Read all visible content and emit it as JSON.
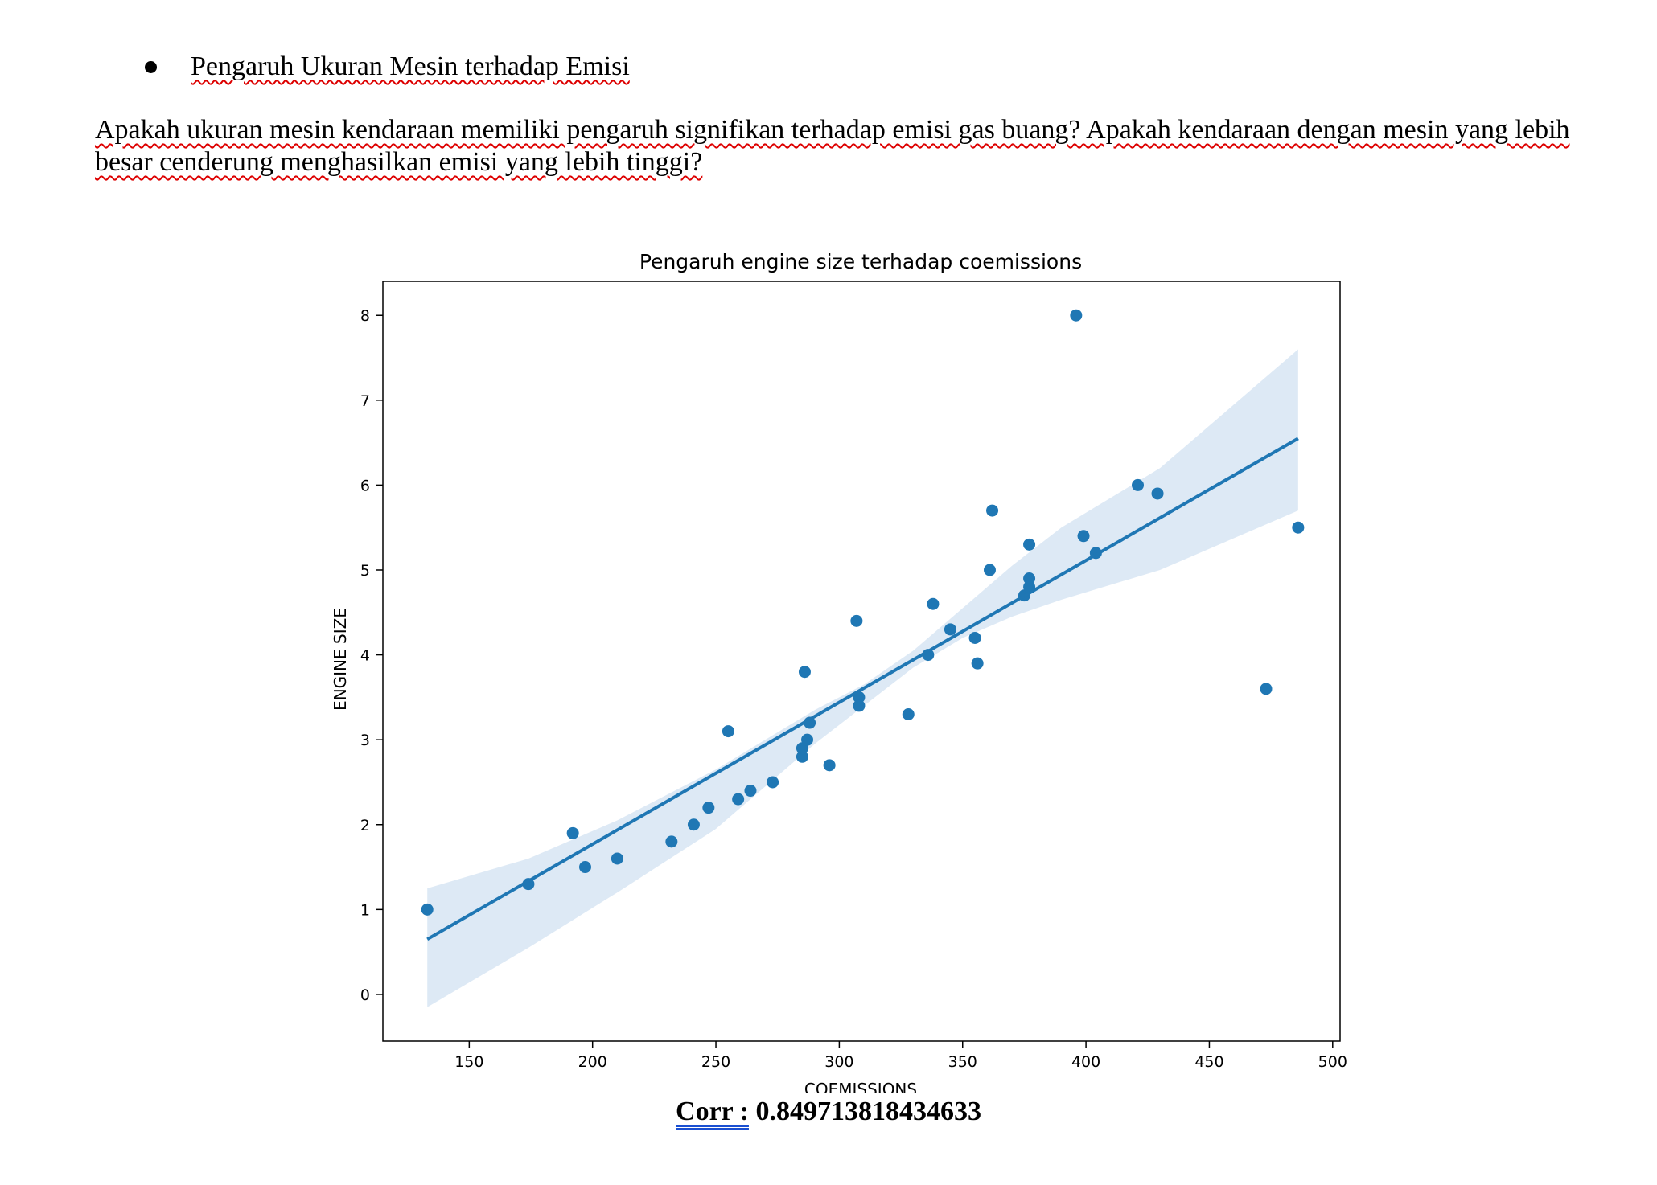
{
  "document": {
    "bullet_heading": "Pengaruh Ukuran Mesin terhadap Emisi",
    "question": "Apakah ukuran mesin kendaraan memiliki pengaruh signifikan terhadap emisi gas buang? Apakah kendaraan dengan mesin yang lebih besar cenderung menghasilkan emisi yang lebih tinggi?",
    "corr_label": "Corr :",
    "corr_value": " 0.849713818434633"
  },
  "chart_data": {
    "type": "scatter",
    "title": "Pengaruh engine size terhadap coemissions",
    "xlabel": "COEMISSIONS",
    "ylabel": "ENGINE SIZE",
    "xlim": [
      115,
      503
    ],
    "ylim": [
      -0.55,
      8.4
    ],
    "xticks": [
      150,
      200,
      250,
      300,
      350,
      400,
      450,
      500
    ],
    "yticks": [
      0,
      1,
      2,
      3,
      4,
      5,
      6,
      7,
      8
    ],
    "point_color": "#1f77b4",
    "band_color": "#c6dbef",
    "points": [
      [
        133,
        1.0
      ],
      [
        174,
        1.3
      ],
      [
        192,
        1.9
      ],
      [
        197,
        1.5
      ],
      [
        210,
        1.6
      ],
      [
        232,
        1.8
      ],
      [
        241,
        2.0
      ],
      [
        247,
        2.2
      ],
      [
        255,
        3.1
      ],
      [
        259,
        2.3
      ],
      [
        264,
        2.4
      ],
      [
        273,
        2.5
      ],
      [
        285,
        2.8
      ],
      [
        285,
        2.9
      ],
      [
        286,
        3.8
      ],
      [
        287,
        3.0
      ],
      [
        288,
        3.2
      ],
      [
        296,
        2.7
      ],
      [
        307,
        4.4
      ],
      [
        308,
        3.5
      ],
      [
        308,
        3.4
      ],
      [
        328,
        3.3
      ],
      [
        336,
        4.0
      ],
      [
        338,
        4.6
      ],
      [
        345,
        4.3
      ],
      [
        355,
        4.2
      ],
      [
        356,
        3.9
      ],
      [
        361,
        5.0
      ],
      [
        362,
        5.7
      ],
      [
        375,
        4.7
      ],
      [
        377,
        4.8
      ],
      [
        377,
        4.9
      ],
      [
        377,
        5.3
      ],
      [
        396,
        8.0
      ],
      [
        399,
        5.4
      ],
      [
        404,
        5.2
      ],
      [
        421,
        6.0
      ],
      [
        429,
        5.9
      ],
      [
        473,
        3.6
      ],
      [
        486,
        5.5
      ]
    ],
    "regression_line": {
      "x": [
        133,
        486
      ],
      "y": [
        0.65,
        6.55
      ]
    },
    "confidence_band": {
      "x": [
        133,
        174,
        210,
        250,
        290,
        310,
        330,
        350,
        370,
        390,
        430,
        486
      ],
      "lower": [
        -0.15,
        0.55,
        1.2,
        1.95,
        2.95,
        3.4,
        3.85,
        4.2,
        4.45,
        4.65,
        5.0,
        5.7
      ],
      "upper": [
        1.25,
        1.6,
        2.05,
        2.65,
        3.35,
        3.65,
        4.05,
        4.55,
        5.05,
        5.5,
        6.2,
        7.6
      ]
    }
  }
}
